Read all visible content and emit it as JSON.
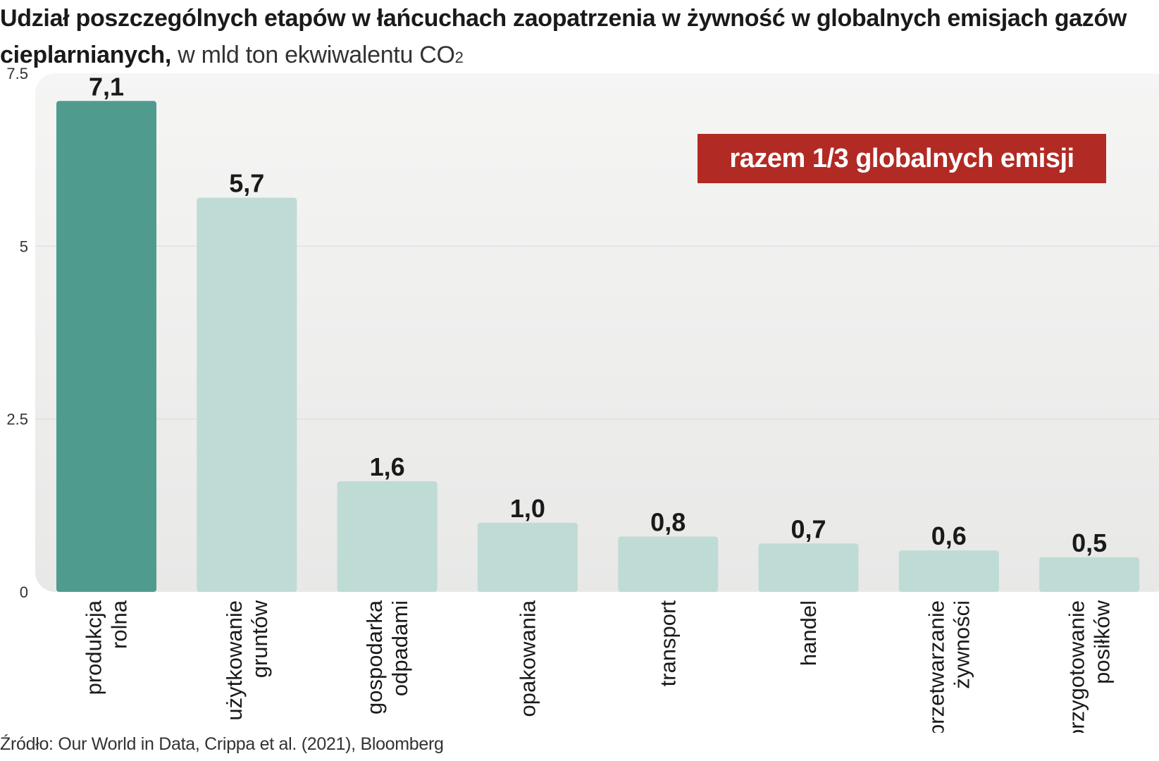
{
  "title": {
    "bold": "Udział poszczególnych etapów w łańcuchach zaopatrzenia w żywność w globalnych emisjach gazów cieplarnianych,",
    "light": "w mld ton ekwiwalentu CO",
    "light_sub": "2"
  },
  "callout": "razem 1/3 globalnych emisji",
  "source": "Źródło: Our World in Data, Crippa et al. (2021), Bloomberg",
  "colors": {
    "highlight_bar": "#4f9c8f",
    "bar": "#bfdbd5",
    "callout_bg": "#b22a24",
    "plot_bg_top": "#f5f5f4",
    "plot_bg_bottom": "#e8e8e7"
  },
  "chart_data": {
    "type": "bar",
    "title": "Udział poszczególnych etapów w łańcuchach zaopatrzenia w żywność w globalnych emisjach gazów cieplarnianych",
    "xlabel": "",
    "ylabel": "w mld ton ekwiwalentu CO2",
    "ylim": [
      0,
      7.5
    ],
    "y_ticks": [
      "0",
      "2.5",
      "5",
      "7.5"
    ],
    "y_tick_values": [
      0,
      2.5,
      5,
      7.5
    ],
    "grid": true,
    "categories": [
      [
        "produkcja",
        "rolna"
      ],
      [
        "użytkowanie",
        "gruntów"
      ],
      [
        "gospodarka",
        "odpadami"
      ],
      [
        "opakowania"
      ],
      [
        "transport"
      ],
      [
        "handel"
      ],
      [
        "przetwarzanie",
        "żywności"
      ],
      [
        "przygotowanie",
        "posiłków"
      ]
    ],
    "values": [
      7.1,
      5.7,
      1.6,
      1.0,
      0.8,
      0.7,
      0.6,
      0.5
    ],
    "value_labels": [
      "7,1",
      "5,7",
      "1,6",
      "1,0",
      "0,8",
      "0,7",
      "0,6",
      "0,5"
    ],
    "highlight_index": 0
  }
}
